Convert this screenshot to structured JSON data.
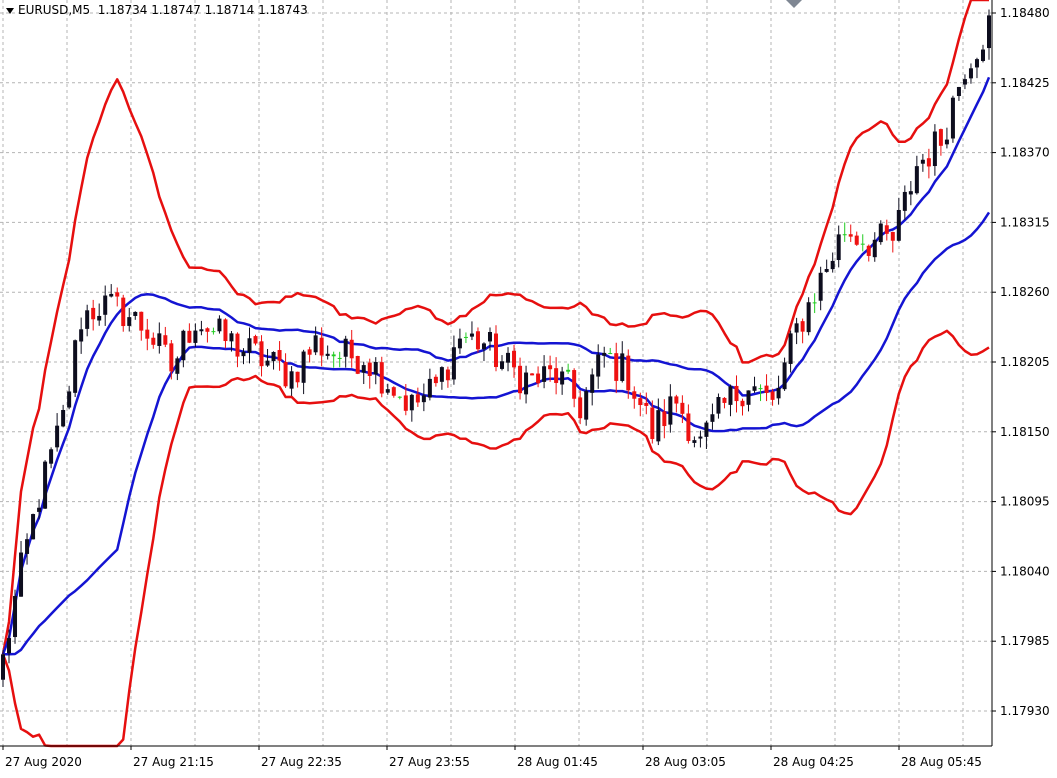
{
  "header": {
    "symbol_label": "EURUSD,M5",
    "ohlc_text": "1.18734 1.18747 1.18714 1.18743"
  },
  "colors": {
    "background": "#ffffff",
    "grid": "#b4b4b4",
    "bull_candle": "#0d0d1e",
    "bear_candle": "#ee1111",
    "doji_candle": "#22cc22",
    "outer_band": "#e60f0f",
    "inner_band": "#1414d2",
    "axis": "#000000"
  },
  "chart_data": {
    "type": "candlestick",
    "symbol": "EURUSD",
    "timeframe": "M5",
    "ylim": [
      1.179,
      1.185
    ],
    "y_ticks": [
      "1.18480",
      "1.18425",
      "1.18370",
      "1.18315",
      "1.18260",
      "1.18205",
      "1.18150",
      "1.18095",
      "1.18040",
      "1.17985",
      "1.17930"
    ],
    "x_ticks": [
      "27 Aug 2020",
      "27 Aug 21:15",
      "27 Aug 22:35",
      "27 Aug 23:55",
      "28 Aug 01:45",
      "28 Aug 03:05",
      "28 Aug 04:25",
      "28 Aug 05:45"
    ],
    "grid": true,
    "bar_count": 165,
    "price_anchors": [
      [
        0,
        1.1797
      ],
      [
        3,
        1.1804
      ],
      [
        6,
        1.181
      ],
      [
        10,
        1.1816
      ],
      [
        13,
        1.1824
      ],
      [
        16,
        1.1825
      ],
      [
        20,
        1.18245
      ],
      [
        24,
        1.1823
      ],
      [
        28,
        1.182
      ],
      [
        32,
        1.1824
      ],
      [
        36,
        1.18225
      ],
      [
        40,
        1.18215
      ],
      [
        44,
        1.18205
      ],
      [
        48,
        1.18195
      ],
      [
        52,
        1.1822
      ],
      [
        56,
        1.1821
      ],
      [
        60,
        1.1821
      ],
      [
        64,
        1.1819
      ],
      [
        68,
        1.1817
      ],
      [
        72,
        1.18185
      ],
      [
        76,
        1.18225
      ],
      [
        80,
        1.1822
      ],
      [
        84,
        1.182
      ],
      [
        88,
        1.1819
      ],
      [
        92,
        1.18195
      ],
      [
        96,
        1.1817
      ],
      [
        100,
        1.1821
      ],
      [
        104,
        1.18195
      ],
      [
        108,
        1.1815
      ],
      [
        112,
        1.18175
      ],
      [
        116,
        1.1814
      ],
      [
        120,
        1.1817
      ],
      [
        124,
        1.1819
      ],
      [
        128,
        1.1817
      ],
      [
        132,
        1.1823
      ],
      [
        136,
        1.1827
      ],
      [
        140,
        1.1831
      ],
      [
        144,
        1.183
      ],
      [
        148,
        1.183
      ],
      [
        152,
        1.1836
      ],
      [
        156,
        1.1838
      ],
      [
        160,
        1.1844
      ],
      [
        164,
        1.1847
      ]
    ],
    "bands": {
      "period": 20,
      "outer_deviation": 3.0,
      "inner_deviation": 1.0
    }
  }
}
